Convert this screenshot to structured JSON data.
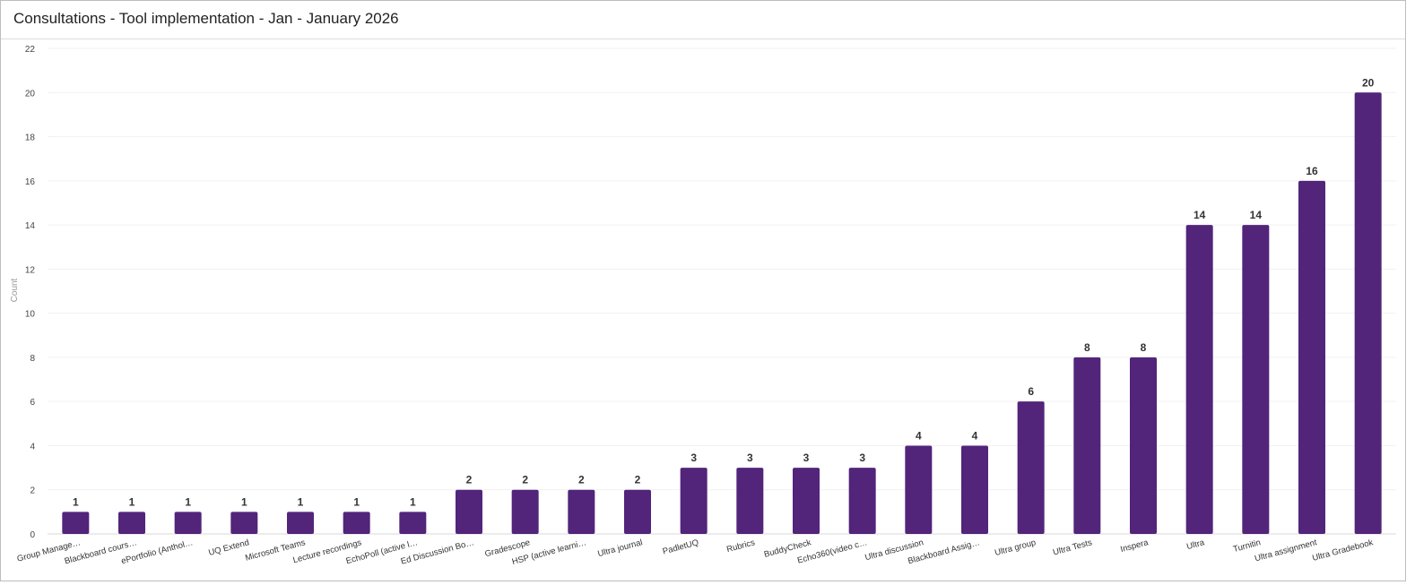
{
  "panel": {
    "title": "Consultations - Tool implementation - Jan - January 2026"
  },
  "chart_data": {
    "type": "bar",
    "title": "Consultations - Tool implementation - Jan - January 2026",
    "xlabel": "",
    "ylabel": "Count",
    "ylim": [
      0,
      22
    ],
    "yticks": [
      0,
      2,
      4,
      6,
      8,
      10,
      12,
      14,
      16,
      18,
      20,
      22
    ],
    "grid": true,
    "categories": [
      "Group Manage…",
      "Blackboard cours…",
      "ePortfolio (Anthol…",
      "UQ Extend",
      "Microsoft Teams",
      "Lecture recordings",
      "EchoPoll (active l…",
      "Ed Discussion Bo…",
      "Gradescope",
      "HSP (active learni…",
      "Ultra journal",
      "PadletUQ",
      "Rubrics",
      "BuddyCheck",
      "Echo360(video c…",
      "Ultra discussion",
      "Blackboard Assig…",
      "Ultra group",
      "Ultra Tests",
      "Inspera",
      "Ultra",
      "Turnitin",
      "Ultra assignment",
      "Ultra Gradebook"
    ],
    "values": [
      1,
      1,
      1,
      1,
      1,
      1,
      1,
      2,
      2,
      2,
      2,
      3,
      3,
      3,
      3,
      4,
      4,
      6,
      8,
      8,
      14,
      14,
      16,
      20
    ],
    "bar_color": "#52247a"
  }
}
